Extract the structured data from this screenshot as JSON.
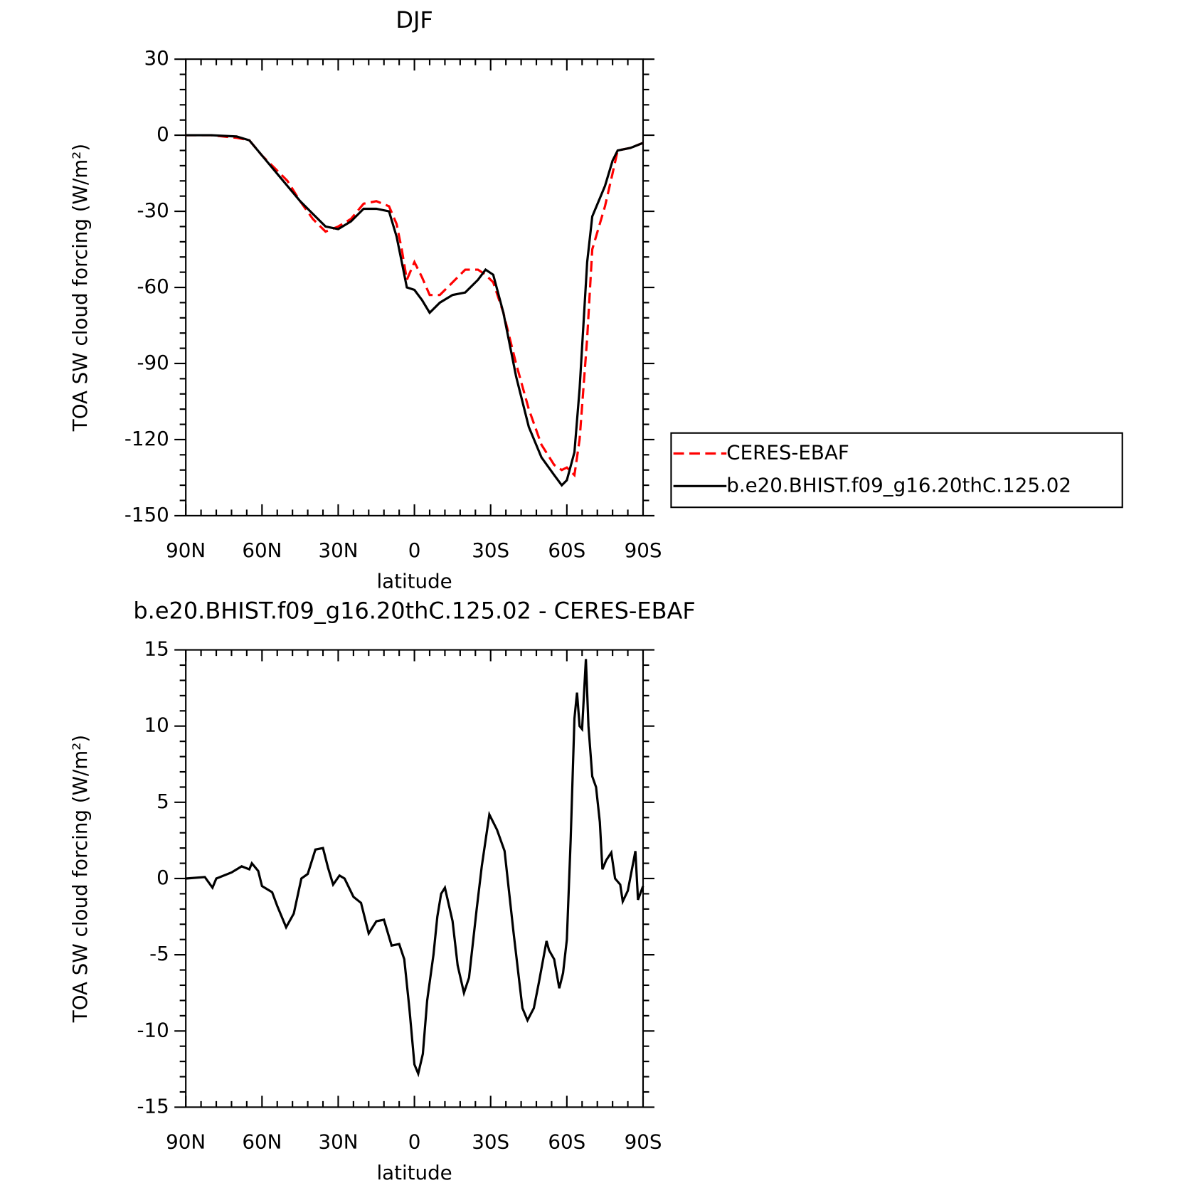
{
  "chart_data": [
    {
      "type": "line",
      "title": "DJF",
      "xlabel": "latitude",
      "ylabel": "TOA SW cloud forcing (W/m²)",
      "x": [
        90,
        80,
        70,
        65,
        60,
        55,
        50,
        45,
        40,
        35,
        30,
        25,
        20,
        15,
        10,
        7,
        5,
        3,
        0,
        -3,
        -6,
        -10,
        -15,
        -20,
        -25,
        -28,
        -31,
        -35,
        -40,
        -45,
        -50,
        -55,
        -58,
        -60,
        -63,
        -65,
        -68,
        -70,
        -75,
        -78,
        -80,
        -85,
        -90
      ],
      "series": [
        {
          "name": "CERES-EBAF",
          "color": "#ff0000",
          "dash": true,
          "values": [
            0,
            0,
            -1,
            -2,
            -8,
            -13,
            -18,
            -26,
            -33,
            -38,
            -36,
            -33,
            -27,
            -26,
            -28,
            -35,
            -45,
            -57,
            -50,
            -56,
            -63,
            -63,
            -58,
            -53,
            -53,
            -55,
            -58,
            -70,
            -90,
            -108,
            -122,
            -130,
            -132,
            -131,
            -134,
            -120,
            -80,
            -45,
            -28,
            -15,
            -6,
            -5,
            -3
          ]
        },
        {
          "name": "b.e20.BHIST.f09_g16.20thC.125.02",
          "color": "#000000",
          "dash": false,
          "values": [
            0,
            0,
            -0.5,
            -2,
            -8,
            -14,
            -20,
            -26,
            -31,
            -36,
            -37,
            -34,
            -29,
            -29,
            -30,
            -40,
            -50,
            -60,
            -61,
            -65,
            -70,
            -66,
            -63,
            -62,
            -57,
            -53,
            -55,
            -70,
            -95,
            -115,
            -127,
            -134,
            -138,
            -136,
            -125,
            -100,
            -50,
            -32,
            -20,
            -10,
            -6,
            -5,
            -3
          ]
        }
      ],
      "xlim": [
        90,
        -90
      ],
      "xticks": [
        {
          "value": 90,
          "label": "90N"
        },
        {
          "value": 60,
          "label": "60N"
        },
        {
          "value": 30,
          "label": "30N"
        },
        0,
        {
          "value": -30,
          "label": "30S"
        },
        {
          "value": -60,
          "label": "60S"
        },
        {
          "value": -90,
          "label": "90S"
        }
      ],
      "ylim": [
        -150,
        30
      ],
      "yticks": [
        -150,
        -120,
        -90,
        -60,
        -30,
        0,
        30
      ],
      "legend": "right"
    },
    {
      "type": "line",
      "title": "b.e20.BHIST.f09_g16.20thC.125.02 - CERES-EBAF",
      "xlabel": "latitude",
      "ylabel": "TOA SW cloud forcing (W/m²)",
      "x": [
        90,
        82.5,
        79.5,
        78,
        72,
        68,
        65,
        64,
        61.5,
        60,
        56,
        54,
        50.5,
        47.5,
        44.5,
        42,
        39,
        36,
        34,
        32,
        29.5,
        27.5,
        24,
        21,
        18,
        15,
        12,
        9,
        6,
        4,
        2,
        0,
        -1.5,
        -3.3,
        -5,
        -7.5,
        -9,
        -10.5,
        -12,
        -15,
        -17,
        -19.5,
        -21.5,
        -24.5,
        -26.5,
        -29.5,
        -32.5,
        -35.5,
        -39,
        -42.5,
        -44.5,
        -47,
        -49,
        -52,
        -53,
        -55,
        -57,
        -58.5,
        -60,
        -61.5,
        -63,
        -64,
        -65,
        -66,
        -67.5,
        -68.5,
        -70,
        -71.5,
        -73,
        -74,
        -75.5,
        -77.5,
        -79,
        -81,
        -82,
        -84,
        -87,
        -88,
        -90
      ],
      "series": [
        {
          "color": "#000000",
          "dash": false,
          "values": [
            0,
            0.1,
            -0.6,
            0,
            0.4,
            0.8,
            0.6,
            1,
            0.5,
            -0.5,
            -0.9,
            -1.8,
            -3.2,
            -2.3,
            0,
            0.3,
            1.9,
            2,
            0.7,
            -0.4,
            0.2,
            0,
            -1.2,
            -1.6,
            -3.6,
            -2.8,
            -2.7,
            -4.4,
            -4.3,
            -5.3,
            -8.5,
            -12.2,
            -12.8,
            -11.5,
            -8,
            -5,
            -2.5,
            -1,
            -0.6,
            -2.8,
            -5.7,
            -7.5,
            -6.5,
            -2,
            0.8,
            4.2,
            3.2,
            1.8,
            -3.5,
            -8.5,
            -9.3,
            -8.5,
            -6.8,
            -4.1,
            -4.7,
            -5.3,
            -7.2,
            -6.2,
            -4,
            2.5,
            10.5,
            12.2,
            10,
            9.8,
            14.4,
            10,
            6.7,
            6,
            3.7,
            0.6,
            1.2,
            1.7,
            0,
            -0.4,
            -1.5,
            -0.8,
            1.8,
            -1.4,
            -0.5
          ]
        }
      ],
      "xlim": [
        90,
        -90
      ],
      "xticks": [
        {
          "value": 90,
          "label": "90N"
        },
        {
          "value": 60,
          "label": "60N"
        },
        {
          "value": 30,
          "label": "30N"
        },
        0,
        {
          "value": -30,
          "label": "30S"
        },
        {
          "value": -60,
          "label": "60S"
        },
        {
          "value": -90,
          "label": "90S"
        }
      ],
      "ylim": [
        -15,
        15
      ],
      "yticks": [
        -15,
        -10,
        -5,
        0,
        5,
        10,
        15
      ]
    }
  ]
}
